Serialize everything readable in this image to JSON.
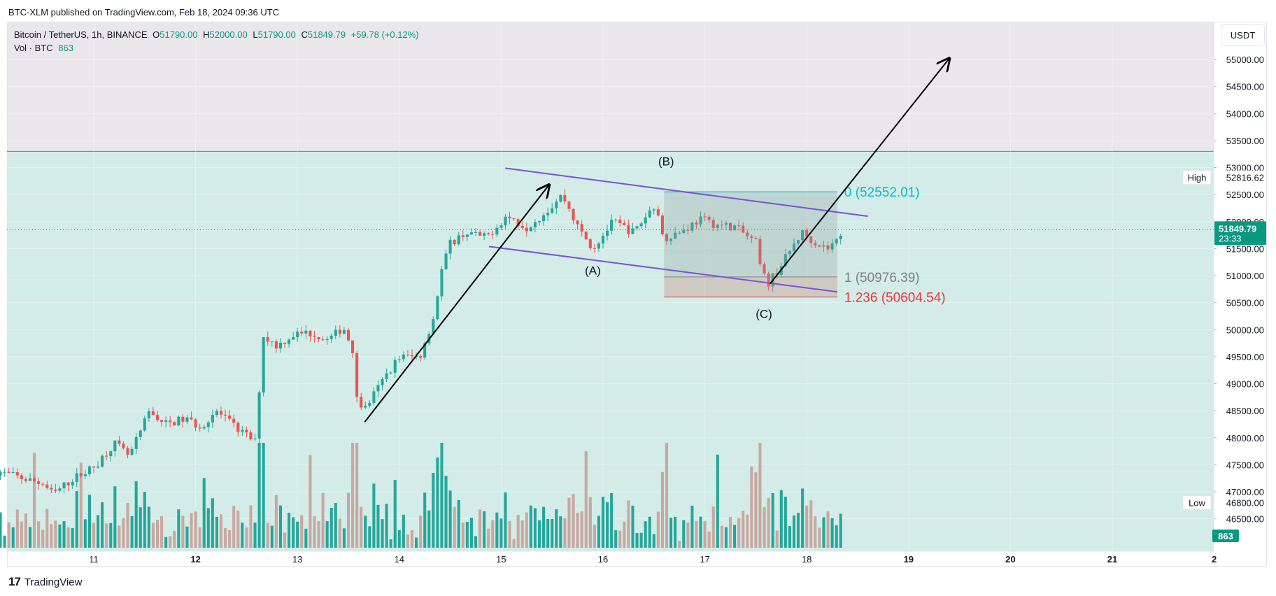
{
  "header": {
    "publisher": "BTC-XLM published on TradingView.com, Feb 18, 2024 09:36 UTC"
  },
  "legend": {
    "symbol": "Bitcoin / TetherUS, 1h, BINANCE",
    "o_label": "O",
    "o_value": "51790.00",
    "h_label": "H",
    "h_value": "52000.00",
    "l_label": "L",
    "l_value": "51790.00",
    "c_label": "C",
    "c_value": "51849.79",
    "change": "+59.78 (+0.12%)",
    "vol_label": "Vol · BTC",
    "vol_value": "863"
  },
  "currency_button": "USDT",
  "footer": {
    "brand": "TradingView"
  },
  "colors": {
    "up": "#26a69a",
    "down": "#ef5350",
    "vol_up": "#26a69a",
    "vol_down": "#c8a8a0",
    "target_zone_bg": "#d3ece8",
    "upper_zone_bg": "#e9e7ec",
    "channel": "#7b52d8",
    "fib_0": "#00bcd4",
    "fib_1": "#808080",
    "fib_1236": "#e53935",
    "last_price": "#089981"
  },
  "chart_data": {
    "type": "candlestick",
    "symbol": "Bitcoin / TetherUS",
    "timeframe": "1h",
    "exchange": "BINANCE",
    "ylim": [
      45900,
      55700
    ],
    "x_ticks": [
      {
        "label": "11",
        "bold": false
      },
      {
        "label": "12",
        "bold": true
      },
      {
        "label": "13",
        "bold": false
      },
      {
        "label": "14",
        "bold": false
      },
      {
        "label": "15",
        "bold": false
      },
      {
        "label": "16",
        "bold": false
      },
      {
        "label": "17",
        "bold": false
      },
      {
        "label": "18",
        "bold": false
      },
      {
        "label": "19",
        "bold": true
      },
      {
        "label": "20",
        "bold": true
      },
      {
        "label": "21",
        "bold": true
      },
      {
        "label": "2",
        "bold": true
      }
    ],
    "y_ticks": [
      "55000.00",
      "54500.00",
      "54000.00",
      "53500.00",
      "53000.00",
      "52500.00",
      "52000.00",
      "51500.00",
      "51000.00",
      "50500.00",
      "50000.00",
      "49500.00",
      "49000.00",
      "48500.00",
      "48000.00",
      "47500.00",
      "47000.00",
      "46500.00"
    ],
    "series_anchor_points": [
      [
        10.0,
        47400
      ],
      [
        10.3,
        47250
      ],
      [
        10.5,
        47150
      ],
      [
        10.6,
        46950
      ],
      [
        10.8,
        47250
      ],
      [
        11.0,
        47450
      ],
      [
        11.2,
        47900
      ],
      [
        11.35,
        47650
      ],
      [
        11.55,
        48500
      ],
      [
        11.7,
        48250
      ],
      [
        11.9,
        48350
      ],
      [
        12.05,
        48200
      ],
      [
        12.2,
        48500
      ],
      [
        12.35,
        48250
      ],
      [
        12.6,
        47900
      ],
      [
        12.65,
        49900
      ],
      [
        12.8,
        49700
      ],
      [
        12.95,
        49900
      ],
      [
        13.1,
        49950
      ],
      [
        13.3,
        49800
      ],
      [
        13.45,
        50050
      ],
      [
        13.55,
        49600
      ],
      [
        13.58,
        48800
      ],
      [
        13.65,
        48500
      ],
      [
        13.85,
        49100
      ],
      [
        14.0,
        49500
      ],
      [
        14.2,
        49500
      ],
      [
        14.35,
        50300
      ],
      [
        14.4,
        51000
      ],
      [
        14.5,
        51600
      ],
      [
        14.65,
        51800
      ],
      [
        14.85,
        51700
      ],
      [
        15.05,
        52100
      ],
      [
        15.25,
        51900
      ],
      [
        15.45,
        52200
      ],
      [
        15.6,
        52500
      ],
      [
        15.75,
        51900
      ],
      [
        15.9,
        51500
      ],
      [
        16.1,
        52000
      ],
      [
        16.3,
        51800
      ],
      [
        16.5,
        52300
      ],
      [
        16.6,
        51700
      ],
      [
        16.8,
        51850
      ],
      [
        16.95,
        52050
      ],
      [
        17.1,
        51950
      ],
      [
        17.3,
        51900
      ],
      [
        17.5,
        51600
      ],
      [
        17.55,
        51100
      ],
      [
        17.62,
        50850
      ],
      [
        17.75,
        51200
      ],
      [
        17.95,
        51800
      ],
      [
        18.1,
        51600
      ],
      [
        18.2,
        51500
      ],
      [
        18.3,
        51650
      ],
      [
        18.35,
        51850
      ]
    ],
    "volume_series_note": "",
    "annotations": {
      "channel_upper": {
        "from": [
          15.04,
          52990
        ],
        "to": [
          18.6,
          52100
        ]
      },
      "channel_lower": {
        "from": [
          14.88,
          51540
        ],
        "to": [
          18.3,
          50700
        ]
      },
      "arrow_1": {
        "from": [
          13.66,
          48290
        ],
        "to": [
          15.47,
          52680
        ]
      },
      "arrow_2": {
        "from": [
          17.64,
          50850
        ],
        "to": [
          19.4,
          55020
        ]
      },
      "wave_labels": [
        {
          "text": "(A)",
          "x": 15.9,
          "y": 51020
        },
        {
          "text": "(B)",
          "x": 16.62,
          "y": 53040
        },
        {
          "text": "(C)",
          "x": 17.58,
          "y": 50220
        }
      ],
      "fib_box": {
        "x_start": 16.6,
        "x_end": 18.3
      },
      "fib_levels": [
        {
          "label": "0 (52552.01)",
          "value": 52552.01,
          "color_key": "fib_0"
        },
        {
          "label": "1 (50976.39)",
          "value": 50976.39,
          "color_key": "fib_1"
        },
        {
          "label": "1.236 (50604.54)",
          "value": 50604.54,
          "color_key": "fib_1236"
        }
      ],
      "zone_boundary": 53300
    },
    "price_badges": {
      "high_label": "High",
      "high_value": "52816.62",
      "last_value": "51849.79",
      "last_countdown": "23:33",
      "low_label": "Low",
      "low_value": "46800.00",
      "volume_value": "863"
    }
  }
}
